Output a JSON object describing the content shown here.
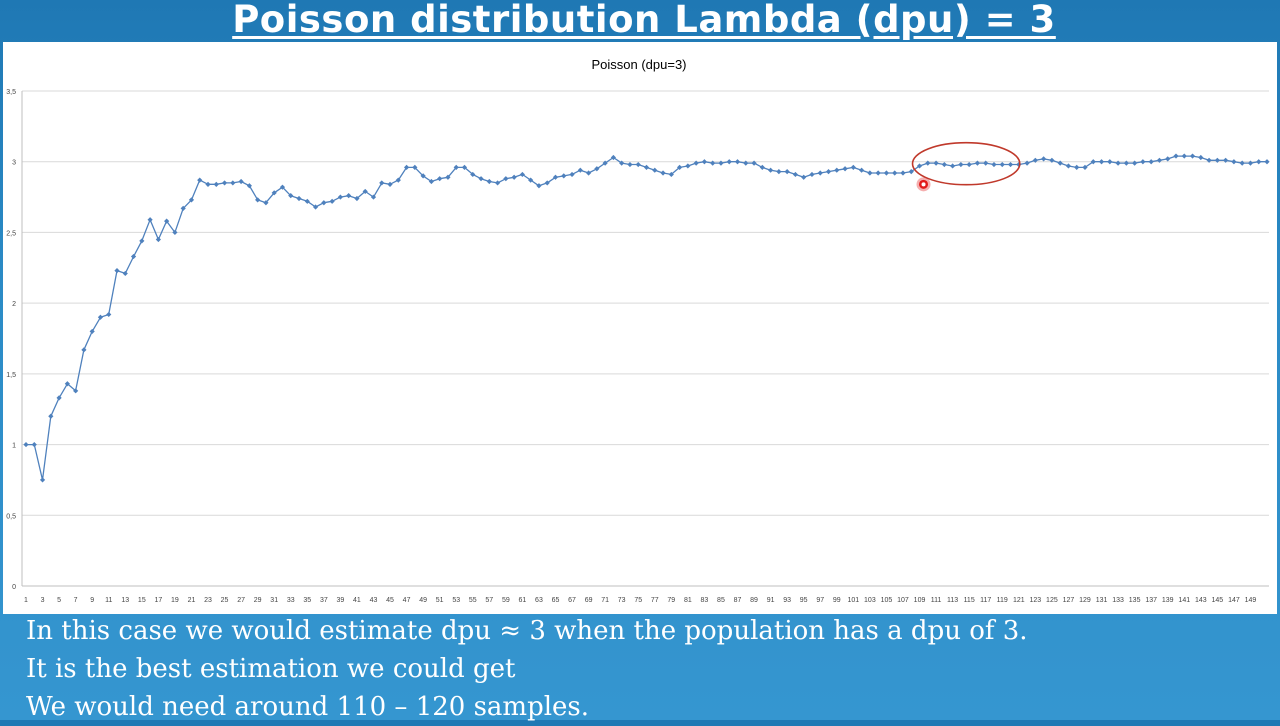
{
  "slide": {
    "title": "Poisson distribution Lambda (dpu) = 3",
    "caption_lines": [
      "In this case we would estimate dpu ≈ 3 when the population has a dpu of 3.",
      "It is the best estimation we could get",
      "We would need around 110 – 120 samples."
    ]
  },
  "colors": {
    "series": "#4f81bd",
    "gridline": "#d9d9d9",
    "highlight": "#c0392b",
    "cursor": "#e21b1b"
  },
  "chart_data": {
    "type": "line",
    "title": "Poisson (dpu=3)",
    "xlabel": "",
    "ylabel": "",
    "ylim": [
      0,
      3.5
    ],
    "y_ticks": [
      "0",
      "0,5",
      "1",
      "1,5",
      "2",
      "2,5",
      "3",
      "3,5"
    ],
    "x_ticks": [
      1,
      3,
      5,
      7,
      9,
      11,
      13,
      15,
      17,
      19,
      21,
      23,
      25,
      27,
      29,
      31,
      33,
      35,
      37,
      39,
      41,
      43,
      45,
      47,
      49,
      51,
      53,
      55,
      57,
      59,
      61,
      63,
      65,
      67,
      69,
      71,
      73,
      75,
      77,
      79,
      81,
      83,
      85,
      87,
      89,
      91,
      93,
      95,
      97,
      99,
      101,
      103,
      105,
      107,
      109,
      111,
      113,
      115,
      117,
      119,
      121,
      123,
      125,
      127,
      129,
      131,
      133,
      135,
      137,
      139,
      141,
      143,
      145,
      147,
      149
    ],
    "grid": true,
    "legend": "none",
    "highlight_range_x": [
      109,
      121
    ],
    "series": [
      {
        "values": [
          1.0,
          1.0,
          0.75,
          1.2,
          1.33,
          1.43,
          1.38,
          1.67,
          1.8,
          1.9,
          1.92,
          2.23,
          2.21,
          2.33,
          2.44,
          2.59,
          2.45,
          2.58,
          2.5,
          2.67,
          2.73,
          2.87,
          2.84,
          2.84,
          2.85,
          2.85,
          2.86,
          2.83,
          2.73,
          2.71,
          2.78,
          2.82,
          2.76,
          2.74,
          2.72,
          2.68,
          2.71,
          2.72,
          2.75,
          2.76,
          2.74,
          2.79,
          2.75,
          2.85,
          2.84,
          2.87,
          2.96,
          2.96,
          2.9,
          2.86,
          2.88,
          2.89,
          2.96,
          2.96,
          2.91,
          2.88,
          2.86,
          2.85,
          2.88,
          2.89,
          2.91,
          2.87,
          2.83,
          2.85,
          2.89,
          2.9,
          2.91,
          2.94,
          2.92,
          2.95,
          2.99,
          3.03,
          2.99,
          2.98,
          2.98,
          2.96,
          2.94,
          2.92,
          2.91,
          2.96,
          2.97,
          2.99,
          3.0,
          2.99,
          2.99,
          3.0,
          3.0,
          2.99,
          2.99,
          2.96,
          2.94,
          2.93,
          2.93,
          2.91,
          2.89,
          2.91,
          2.92,
          2.93,
          2.94,
          2.95,
          2.96,
          2.94,
          2.92,
          2.92,
          2.92,
          2.92,
          2.92,
          2.93,
          2.97,
          2.99,
          2.99,
          2.98,
          2.97,
          2.98,
          2.98,
          2.99,
          2.99,
          2.98,
          2.98,
          2.98,
          2.98,
          2.99,
          3.01,
          3.02,
          3.01,
          2.99,
          2.97,
          2.96,
          2.96,
          3.0,
          3.0,
          3.0,
          2.99,
          2.99,
          2.99,
          3.0,
          3.0,
          3.01,
          3.02,
          3.04,
          3.04,
          3.04,
          3.03,
          3.01,
          3.01,
          3.01,
          3.0,
          2.99,
          2.99,
          3.0,
          3.0
        ]
      }
    ]
  }
}
